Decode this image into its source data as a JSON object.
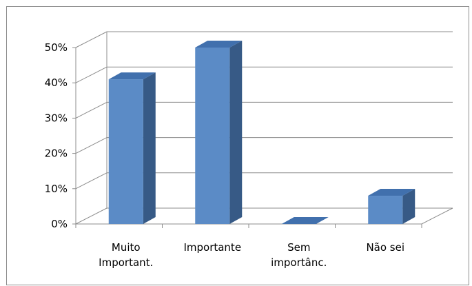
{
  "chart_data": {
    "type": "bar",
    "title": "",
    "xlabel": "",
    "ylabel": "",
    "categories": [
      [
        "Muito",
        "Important."
      ],
      [
        "Importante"
      ],
      [
        "Sem",
        "importânc."
      ],
      [
        "Não sei"
      ]
    ],
    "values": [
      41,
      50,
      0,
      8
    ],
    "ylim": [
      0,
      50
    ],
    "yticks": [
      0,
      10,
      20,
      30,
      40,
      50
    ],
    "ytick_labels": [
      "0%",
      "10%",
      "20%",
      "30%",
      "40%",
      "50%"
    ],
    "grid": true,
    "legend": "none",
    "style": "3d-column"
  },
  "colors": {
    "bar_front": "#5b8bc6",
    "bar_top": "#4170ad",
    "bar_side": "#375a86",
    "grid": "#8c8c8c",
    "border": "#8c8c8c"
  }
}
